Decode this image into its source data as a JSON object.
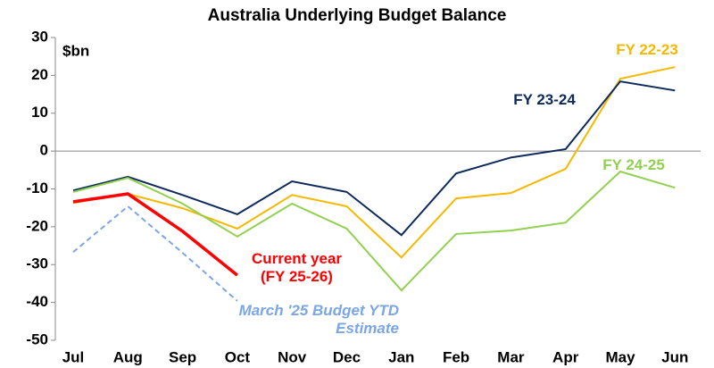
{
  "chart_data": {
    "type": "line",
    "title": "Australia Underlying Budget Balance",
    "unit_label": "$bn",
    "categories": [
      "Jul",
      "Aug",
      "Sep",
      "Oct",
      "Nov",
      "Dec",
      "Jan",
      "Feb",
      "Mar",
      "Apr",
      "May",
      "Jun"
    ],
    "series": [
      {
        "name": "FY 22-23",
        "color": "#f5b800",
        "values": [
          -13.7,
          -11.3,
          -15.1,
          -20.5,
          -11.6,
          -14.6,
          -28.1,
          -12.5,
          -11.1,
          -4.7,
          19.1,
          22.2
        ]
      },
      {
        "name": "FY 23-24",
        "color": "#0d2a5a",
        "values": [
          -10.4,
          -6.8,
          -11.6,
          -16.7,
          -8.0,
          -10.8,
          -22.2,
          -5.9,
          -1.7,
          0.5,
          18.4,
          16.0
        ]
      },
      {
        "name": "FY 24-25",
        "color": "#92d050",
        "values": [
          -10.8,
          -7.1,
          -13.9,
          -22.6,
          -13.9,
          -20.5,
          -36.8,
          -21.9,
          -21.0,
          -18.9,
          -5.4,
          -9.7
        ]
      },
      {
        "name": "Current year (FY 25-26)",
        "color": "#ff0000",
        "values": [
          -13.4,
          -11.3,
          -21.2,
          -32.8,
          null,
          null,
          null,
          null,
          null,
          null,
          null,
          null
        ]
      },
      {
        "name": "March '25 Budget YTD Estimate",
        "color": "#7aa6e6",
        "dashed": true,
        "values": [
          -26.7,
          -14.6,
          -26.9,
          -39.6,
          null,
          null,
          null,
          null,
          null,
          null,
          null,
          null
        ]
      }
    ],
    "ylim": [
      -50,
      30
    ],
    "yticks": [
      -50,
      -40,
      -30,
      -20,
      -10,
      0,
      10,
      20,
      30
    ]
  }
}
